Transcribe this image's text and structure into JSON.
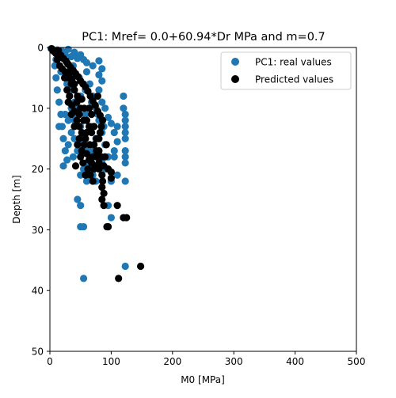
{
  "chart_data": {
    "type": "scatter",
    "title": "PC1: Mref= 0.0+60.94*Dr MPa and m=0.7",
    "xlabel": "M0 [MPa]",
    "ylabel": "Depth [m]",
    "xlim": [
      0,
      500
    ],
    "ylim": [
      50,
      0
    ],
    "y_inverted": true,
    "xticks": [
      "0",
      "100",
      "200",
      "300",
      "400",
      "500"
    ],
    "yticks": [
      "0",
      "10",
      "20",
      "30",
      "40",
      "50"
    ],
    "grid": false,
    "legend_position": "top-right",
    "series": [
      {
        "name": "PC1: real values",
        "color": "#1f77b4",
        "points": [
          [
            2,
            0.2
          ],
          [
            5,
            0.5
          ],
          [
            8,
            0.8
          ],
          [
            12,
            0.4
          ],
          [
            15,
            1
          ],
          [
            20,
            0.6
          ],
          [
            25,
            1.2
          ],
          [
            30,
            0.3
          ],
          [
            35,
            1.5
          ],
          [
            40,
            0.8
          ],
          [
            45,
            1.8
          ],
          [
            50,
            1.2
          ],
          [
            55,
            2
          ],
          [
            60,
            2.5
          ],
          [
            70,
            3
          ],
          [
            80,
            2.2
          ],
          [
            85,
            3.5
          ],
          [
            80,
            4.5
          ],
          [
            85,
            5.5
          ],
          [
            80,
            7
          ],
          [
            85,
            9
          ],
          [
            90,
            10
          ],
          [
            95,
            11.5
          ],
          [
            100,
            12.5
          ],
          [
            105,
            14
          ],
          [
            110,
            15.5
          ],
          [
            120,
            8
          ],
          [
            120,
            10
          ],
          [
            123,
            11
          ],
          [
            123,
            12
          ],
          [
            123,
            13
          ],
          [
            123,
            14
          ],
          [
            123,
            15
          ],
          [
            110,
            13
          ],
          [
            105,
            17
          ],
          [
            105,
            18
          ],
          [
            123,
            17
          ],
          [
            123,
            18
          ],
          [
            123,
            19
          ],
          [
            123,
            22
          ],
          [
            110,
            21
          ],
          [
            100,
            22
          ],
          [
            95,
            20
          ],
          [
            8,
            3
          ],
          [
            10,
            5
          ],
          [
            12,
            7
          ],
          [
            15,
            9
          ],
          [
            18,
            11
          ],
          [
            20,
            13
          ],
          [
            22,
            15
          ],
          [
            25,
            17
          ],
          [
            28,
            18.5
          ],
          [
            22,
            19.5
          ],
          [
            30,
            16
          ],
          [
            35,
            14
          ],
          [
            40,
            12
          ],
          [
            45,
            10
          ],
          [
            50,
            8
          ],
          [
            55,
            6
          ],
          [
            60,
            4
          ],
          [
            65,
            6
          ],
          [
            70,
            8
          ],
          [
            75,
            10
          ],
          [
            80,
            12
          ],
          [
            85,
            14
          ],
          [
            90,
            16
          ],
          [
            95,
            18
          ],
          [
            60,
            19
          ],
          [
            65,
            20
          ],
          [
            70,
            21
          ],
          [
            75,
            22
          ],
          [
            55,
            20
          ],
          [
            50,
            21
          ],
          [
            60,
            22
          ],
          [
            45,
            25
          ],
          [
            50,
            26
          ],
          [
            95,
            26
          ],
          [
            100,
            28
          ],
          [
            50,
            29.5
          ],
          [
            55,
            29.5
          ],
          [
            95,
            29.5
          ],
          [
            123,
            36
          ],
          [
            55,
            38
          ],
          [
            30,
            5
          ],
          [
            35,
            7
          ],
          [
            40,
            9
          ],
          [
            45,
            11
          ],
          [
            50,
            13
          ],
          [
            55,
            15
          ],
          [
            60,
            17
          ],
          [
            65,
            18
          ],
          [
            70,
            17
          ],
          [
            75,
            15
          ],
          [
            30,
            12
          ],
          [
            35,
            10
          ],
          [
            40,
            15
          ],
          [
            45,
            17
          ],
          [
            15,
            13
          ],
          [
            25,
            11
          ],
          [
            10,
            2
          ],
          [
            18,
            4
          ],
          [
            28,
            6
          ],
          [
            38,
            3
          ],
          [
            48,
            5
          ],
          [
            58,
            7
          ],
          [
            68,
            9
          ],
          [
            78,
            11
          ],
          [
            88,
            13
          ],
          [
            68,
            13
          ],
          [
            58,
            11
          ],
          [
            48,
            16
          ],
          [
            38,
            18
          ],
          [
            85,
            19
          ],
          [
            90,
            20
          ]
        ]
      },
      {
        "name": "Predicted values",
        "color": "#000000",
        "points": [
          [
            3,
            0.2
          ],
          [
            6,
            0.6
          ],
          [
            10,
            1
          ],
          [
            14,
            0.5
          ],
          [
            18,
            1.3
          ],
          [
            22,
            1.8
          ],
          [
            26,
            2.2
          ],
          [
            30,
            2.8
          ],
          [
            34,
            3.3
          ],
          [
            38,
            3.8
          ],
          [
            42,
            4.3
          ],
          [
            46,
            4.8
          ],
          [
            50,
            5.5
          ],
          [
            54,
            6
          ],
          [
            58,
            6.5
          ],
          [
            62,
            7.2
          ],
          [
            66,
            8
          ],
          [
            70,
            8.8
          ],
          [
            74,
            9.5
          ],
          [
            78,
            10.5
          ],
          [
            82,
            11.2
          ],
          [
            86,
            12
          ],
          [
            40,
            6
          ],
          [
            45,
            8
          ],
          [
            50,
            10
          ],
          [
            55,
            12
          ],
          [
            60,
            14
          ],
          [
            65,
            16
          ],
          [
            70,
            18
          ],
          [
            75,
            19.5
          ],
          [
            80,
            20
          ],
          [
            85,
            21
          ],
          [
            88,
            19.5
          ],
          [
            95,
            20
          ],
          [
            100,
            20.5
          ],
          [
            100,
            21.5
          ],
          [
            30,
            9
          ],
          [
            35,
            11
          ],
          [
            40,
            13
          ],
          [
            45,
            16
          ],
          [
            50,
            18
          ],
          [
            42,
            19.5
          ],
          [
            48,
            15
          ],
          [
            52,
            17
          ],
          [
            58,
            15
          ],
          [
            64,
            13
          ],
          [
            68,
            11
          ],
          [
            72,
            13
          ],
          [
            76,
            15
          ],
          [
            80,
            17
          ],
          [
            84,
            18
          ],
          [
            86,
            22
          ],
          [
            85,
            23
          ],
          [
            88,
            24
          ],
          [
            85,
            25
          ],
          [
            88,
            26
          ],
          [
            110,
            26
          ],
          [
            120,
            28
          ],
          [
            125,
            28
          ],
          [
            93,
            29.5
          ],
          [
            95,
            29.5
          ],
          [
            148,
            36
          ],
          [
            112,
            38
          ],
          [
            25,
            4
          ],
          [
            30,
            5
          ],
          [
            35,
            6
          ],
          [
            28,
            7
          ],
          [
            32,
            8
          ],
          [
            36,
            9.5
          ],
          [
            40,
            10.5
          ],
          [
            44,
            12
          ],
          [
            48,
            13
          ],
          [
            52,
            14
          ],
          [
            56,
            16
          ],
          [
            60,
            17.5
          ],
          [
            64,
            18.5
          ],
          [
            68,
            19
          ],
          [
            72,
            20
          ],
          [
            76,
            17
          ],
          [
            80,
            15
          ],
          [
            84,
            13
          ],
          [
            66,
            21
          ],
          [
            70,
            22
          ],
          [
            62,
            20
          ],
          [
            58,
            21
          ],
          [
            54,
            19
          ],
          [
            12,
            2
          ],
          [
            16,
            3
          ],
          [
            20,
            3.5
          ],
          [
            24,
            5
          ],
          [
            28,
            2.5
          ],
          [
            32,
            4.2
          ],
          [
            36,
            5.2
          ],
          [
            40,
            7
          ],
          [
            44,
            9
          ],
          [
            48,
            11
          ],
          [
            52,
            8.5
          ],
          [
            56,
            10
          ],
          [
            60,
            12
          ],
          [
            64,
            10
          ],
          [
            68,
            14
          ],
          [
            72,
            16
          ],
          [
            76,
            18
          ],
          [
            80,
            19
          ],
          [
            90,
            18
          ],
          [
            92,
            16
          ],
          [
            78,
            8
          ],
          [
            82,
            14
          ]
        ]
      }
    ]
  }
}
